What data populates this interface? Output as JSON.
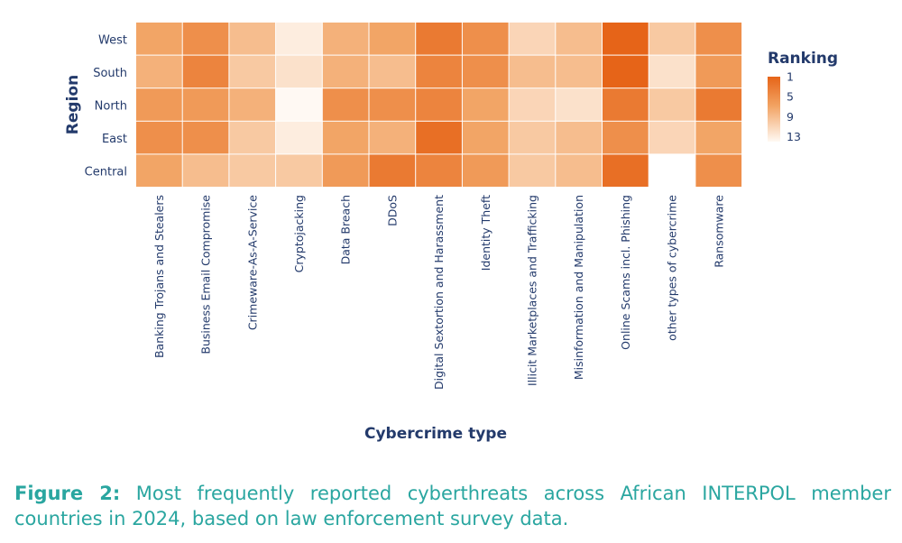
{
  "chart_data": {
    "type": "heatmap",
    "xlabel": "Cybercrime type",
    "ylabel": "Region",
    "categories": [
      "Banking Trojans and Stealers",
      "Business Email Compromise",
      "Crimeware-As-A-Service",
      "Cryptojacking",
      "Data Breach",
      "DDoS",
      "Digital Sextortion and Harassment",
      "Identity Theft",
      "Illicit Marketplaces and Trafficking",
      "Misinformation and Manipulation",
      "Online Scams incl. Phishing",
      "other types of cybercrime",
      "Ransomware"
    ],
    "regions": [
      "West",
      "South",
      "North",
      "East",
      "Central"
    ],
    "series": [
      {
        "name": "West",
        "values": [
          7,
          5,
          9,
          13,
          8,
          7,
          3,
          5,
          11,
          9,
          1,
          10,
          5
        ]
      },
      {
        "name": "South",
        "values": [
          8,
          4,
          10,
          12,
          8,
          9,
          4,
          5,
          9,
          9,
          1,
          12,
          6
        ]
      },
      {
        "name": "North",
        "values": [
          6,
          6,
          8,
          14,
          5,
          5,
          4,
          7,
          11,
          12,
          3,
          10,
          3
        ]
      },
      {
        "name": "East",
        "values": [
          5,
          5,
          10,
          13,
          7,
          8,
          2,
          7,
          10,
          9,
          5,
          11,
          7
        ]
      },
      {
        "name": "Central",
        "values": [
          7,
          9,
          10,
          10,
          6,
          3,
          4,
          6,
          10,
          9,
          2,
          null,
          5
        ]
      }
    ],
    "legend": {
      "title": "Ranking",
      "ticks": [
        1,
        5,
        9,
        13
      ],
      "range": [
        1,
        14
      ],
      "placement": "right",
      "color_low_rank": "#e66418",
      "color_high_rank": "#fff9f3"
    },
    "missing_color": "#ffffff"
  },
  "caption": {
    "lead": "Figure 2:",
    "text": " Most frequently reported cyberthreats across African INTERPOL member countries in 2024, based on law enforcement survey data."
  },
  "colors": {
    "axis_text": "#233a6b",
    "caption": "#2aa6a0"
  }
}
